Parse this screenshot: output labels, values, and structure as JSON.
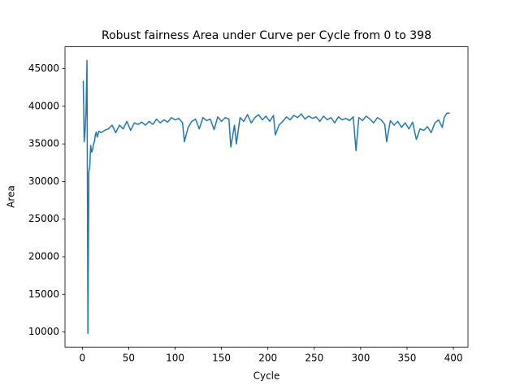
{
  "chart_data": {
    "type": "line",
    "title": "Robust fairness Area under Curve per Cycle from 0 to 398",
    "xlabel": "Cycle",
    "ylabel": "Area",
    "x": [
      1,
      2,
      3,
      4,
      5,
      6,
      7,
      8,
      9,
      10,
      11,
      12,
      13,
      14,
      15,
      16,
      17,
      18,
      20,
      24,
      28,
      32,
      36,
      40,
      44,
      48,
      52,
      56,
      60,
      64,
      68,
      72,
      76,
      80,
      84,
      88,
      92,
      96,
      100,
      104,
      108,
      110,
      114,
      118,
      122,
      126,
      130,
      134,
      138,
      142,
      146,
      150,
      154,
      158,
      160,
      164,
      166,
      170,
      174,
      178,
      182,
      186,
      190,
      194,
      198,
      202,
      206,
      208,
      212,
      216,
      220,
      224,
      228,
      232,
      236,
      240,
      244,
      248,
      252,
      256,
      260,
      264,
      268,
      272,
      276,
      280,
      284,
      288,
      292,
      295,
      298,
      302,
      306,
      310,
      314,
      318,
      322,
      326,
      328,
      332,
      336,
      340,
      344,
      348,
      352,
      356,
      360,
      364,
      368,
      372,
      376,
      380,
      384,
      388,
      390,
      393,
      396
    ],
    "series": [
      {
        "name": "Area",
        "color": "#1f77b4",
        "values": [
          43400,
          35300,
          36800,
          39500,
          46100,
          9800,
          31200,
          32000,
          34800,
          33900,
          34200,
          35000,
          35300,
          36200,
          36600,
          35900,
          36300,
          36700,
          36500,
          36800,
          37000,
          37500,
          36500,
          37500,
          37000,
          38000,
          36800,
          37800,
          37600,
          37900,
          37500,
          38000,
          37600,
          38300,
          37800,
          38200,
          37900,
          38500,
          38200,
          38400,
          37800,
          35300,
          37200,
          38000,
          38300,
          37000,
          38500,
          38100,
          38300,
          36900,
          38600,
          38000,
          38500,
          38300,
          34600,
          37500,
          35000,
          38500,
          38000,
          38900,
          37800,
          38500,
          38900,
          38200,
          38700,
          38000,
          38800,
          36200,
          37500,
          38000,
          38600,
          38200,
          38800,
          38500,
          39000,
          38300,
          38700,
          38400,
          38600,
          38000,
          38700,
          38200,
          38500,
          37800,
          38600,
          38200,
          38400,
          38100,
          38600,
          34100,
          38500,
          38100,
          38700,
          38300,
          37800,
          38500,
          38200,
          37600,
          35300,
          38100,
          37500,
          38000,
          37200,
          37800,
          37000,
          37900,
          35600,
          37000,
          36800,
          37300,
          36500,
          37800,
          38200,
          37200,
          38500,
          39100,
          39100
        ]
      }
    ],
    "xlim": [
      -18.7,
      415.7
    ],
    "ylim": [
      7985,
      47915
    ],
    "xticks": [
      0,
      50,
      100,
      150,
      200,
      250,
      300,
      350,
      400
    ],
    "yticks": [
      10000,
      15000,
      20000,
      25000,
      30000,
      35000,
      40000,
      45000
    ],
    "grid": false
  }
}
